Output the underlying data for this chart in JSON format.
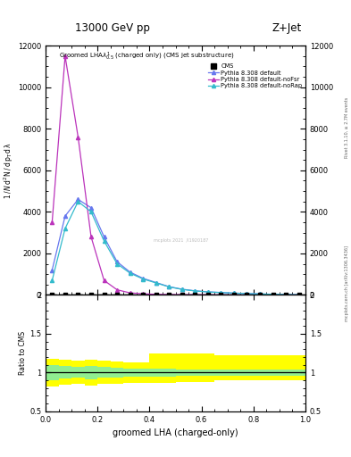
{
  "title_top": "13000 GeV pp",
  "title_right": "Z+Jet",
  "plot_title": "Groomed LHA$\\lambda^1_{0.5}$ (charged only) (CMS jet substructure)",
  "xlabel": "groomed LHA (charged-only)",
  "ylabel_ratio": "Ratio to CMS",
  "right_label": "Rivet 3.1.10, ≥ 2.7M events",
  "right_label2": "mcplots.cern.ch [arXiv:1306.3436]",
  "pythia_default_x": [
    0.025,
    0.075,
    0.125,
    0.175,
    0.225,
    0.275,
    0.325,
    0.375,
    0.425,
    0.475,
    0.525,
    0.575,
    0.625,
    0.675,
    0.725,
    0.775,
    0.825,
    0.875,
    0.925,
    0.975
  ],
  "pythia_default_y": [
    1200,
    3800,
    4600,
    4200,
    2800,
    1600,
    1100,
    800,
    600,
    400,
    280,
    200,
    150,
    120,
    90,
    70,
    50,
    35,
    20,
    10
  ],
  "pythia_nofsr_x": [
    0.025,
    0.075,
    0.125,
    0.175,
    0.225,
    0.275,
    0.325,
    0.375,
    0.425,
    0.475,
    0.525,
    0.575,
    0.625,
    0.675,
    0.725,
    0.775,
    0.825,
    0.875,
    0.925,
    0.975
  ],
  "pythia_nofsr_y": [
    3500,
    11500,
    7600,
    2800,
    700,
    250,
    100,
    60,
    30,
    20,
    15,
    10,
    8,
    6,
    5,
    4,
    3,
    2,
    1,
    0.5
  ],
  "pythia_norap_x": [
    0.025,
    0.075,
    0.125,
    0.175,
    0.225,
    0.275,
    0.325,
    0.375,
    0.425,
    0.475,
    0.525,
    0.575,
    0.625,
    0.675,
    0.725,
    0.775,
    0.825,
    0.875,
    0.925,
    0.975
  ],
  "pythia_norap_y": [
    700,
    3200,
    4500,
    4000,
    2600,
    1500,
    1050,
    770,
    580,
    390,
    270,
    195,
    145,
    115,
    87,
    68,
    48,
    33,
    19,
    9
  ],
  "cms_x": [
    0.025,
    0.075,
    0.125,
    0.175,
    0.225,
    0.275,
    0.325,
    0.375,
    0.425,
    0.475,
    0.525,
    0.575,
    0.625,
    0.675,
    0.725,
    0.775,
    0.825,
    0.875,
    0.925,
    0.975
  ],
  "cms_y": [
    0,
    0,
    0,
    0,
    0,
    0,
    0,
    0,
    0,
    0,
    0,
    0,
    0,
    0,
    0,
    0,
    0,
    0,
    0,
    0
  ],
  "color_default": "#6677ee",
  "color_nofsr": "#bb33bb",
  "color_norap": "#33bbcc",
  "color_cms": "black",
  "ylim_main": [
    0,
    12000
  ],
  "ylim_ratio": [
    0.5,
    2.0
  ],
  "xlim": [
    0.0,
    1.0
  ],
  "yticks_main": [
    0,
    2000,
    4000,
    6000,
    8000,
    10000,
    12000
  ],
  "ytick_labels_main": [
    "0",
    "2000",
    "4000",
    "6000",
    "8000",
    "10000",
    "12000"
  ],
  "ratio_x_edges": [
    0.0,
    0.05,
    0.1,
    0.15,
    0.2,
    0.25,
    0.3,
    0.35,
    0.4,
    0.45,
    0.5,
    0.55,
    0.6,
    0.65,
    0.7,
    0.75,
    0.8,
    0.85,
    0.9,
    0.95,
    1.0
  ],
  "ratio_green_lo": [
    0.9,
    0.92,
    0.93,
    0.91,
    0.93,
    0.94,
    0.95,
    0.95,
    0.95,
    0.95,
    0.96,
    0.96,
    0.96,
    0.96,
    0.96,
    0.96,
    0.96,
    0.96,
    0.96,
    0.96
  ],
  "ratio_green_hi": [
    1.1,
    1.08,
    1.07,
    1.09,
    1.07,
    1.06,
    1.05,
    1.05,
    1.05,
    1.05,
    1.04,
    1.04,
    1.04,
    1.04,
    1.04,
    1.04,
    1.04,
    1.04,
    1.04,
    1.04
  ],
  "ratio_yellow_lo": [
    0.82,
    0.84,
    0.85,
    0.83,
    0.85,
    0.86,
    0.87,
    0.87,
    0.87,
    0.87,
    0.88,
    0.88,
    0.88,
    0.9,
    0.9,
    0.9,
    0.9,
    0.9,
    0.9,
    0.9
  ],
  "ratio_yellow_hi": [
    1.18,
    1.16,
    1.15,
    1.17,
    1.15,
    1.14,
    1.13,
    1.13,
    1.25,
    1.25,
    1.25,
    1.25,
    1.25,
    1.22,
    1.22,
    1.22,
    1.22,
    1.22,
    1.22,
    1.22
  ],
  "watermark": "mcplots 2021  /I1920187"
}
